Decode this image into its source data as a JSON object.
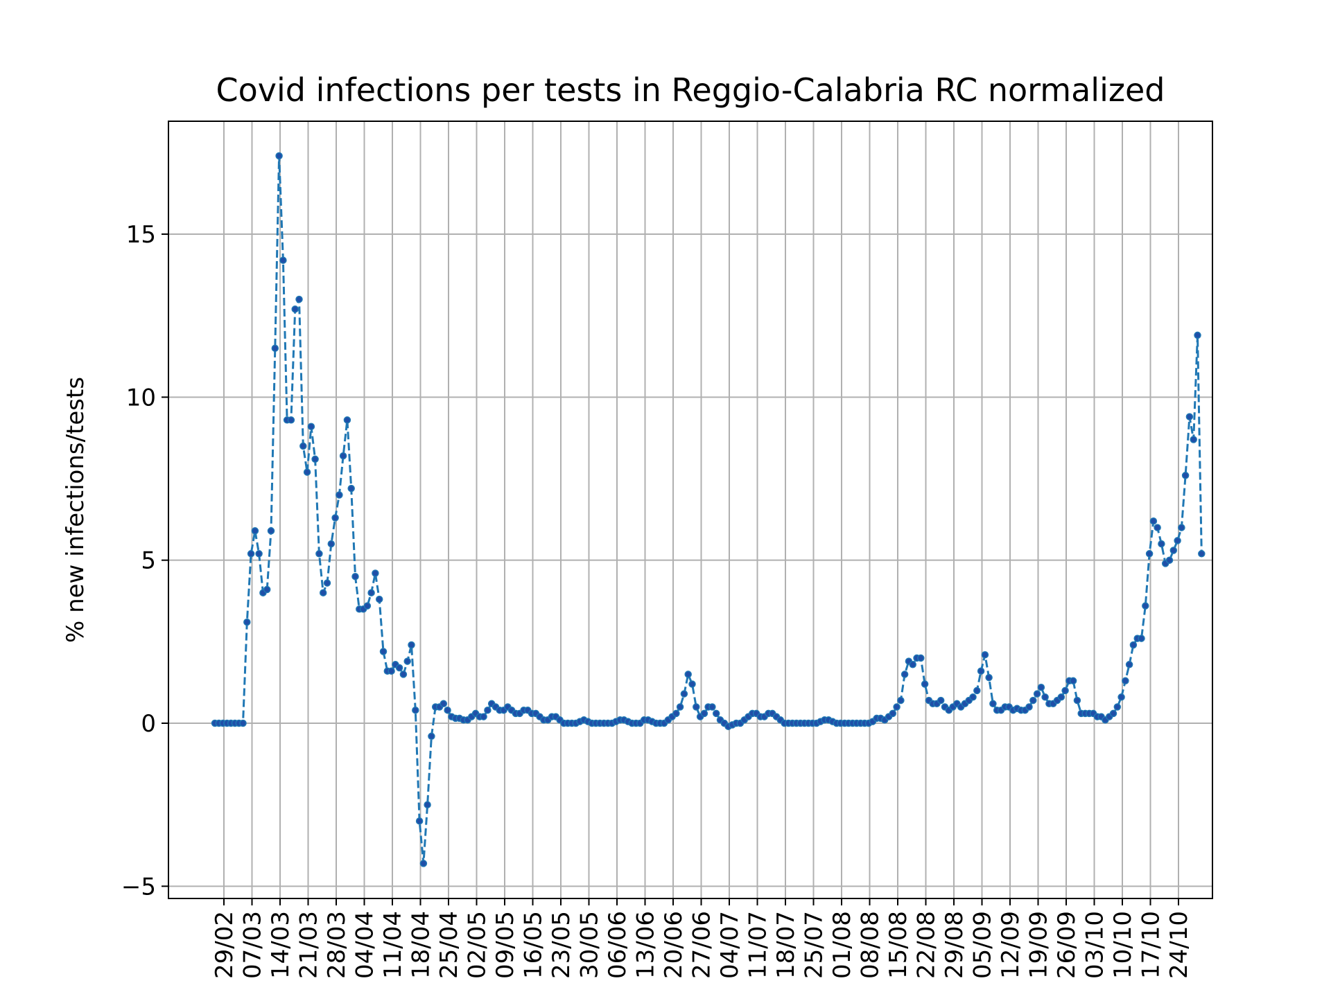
{
  "chart_data": {
    "type": "line",
    "title": "Covid infections per tests in Reggio-Calabria RC normalized",
    "xlabel": "",
    "ylabel": "% new infections/tests",
    "ylim": [
      -5.3,
      18.5
    ],
    "yticks": [
      {
        "value": -5,
        "label": "−5"
      },
      {
        "value": 0,
        "label": "0"
      },
      {
        "value": 5,
        "label": "5"
      },
      {
        "value": 10,
        "label": "10"
      },
      {
        "value": 15,
        "label": "15"
      }
    ],
    "xticks": [
      "29/02",
      "07/03",
      "14/03",
      "21/03",
      "28/03",
      "04/04",
      "11/04",
      "18/04",
      "25/04",
      "02/05",
      "09/05",
      "16/05",
      "23/05",
      "30/05",
      "06/06",
      "13/06",
      "20/06",
      "27/06",
      "04/07",
      "11/07",
      "18/07",
      "25/07",
      "01/08",
      "08/08",
      "15/08",
      "22/08",
      "29/08",
      "05/09",
      "12/09",
      "19/09",
      "26/09",
      "03/10",
      "10/10",
      "17/10",
      "24/10"
    ],
    "grid": true,
    "colors": {
      "line": "#1f77b4",
      "marker": "#1f4fa8",
      "grid": "#b0b0b0"
    },
    "series": [
      {
        "values": [
          0,
          0,
          0,
          0,
          0,
          0,
          0,
          0,
          3.1,
          5.2,
          5.9,
          5.2,
          4.0,
          4.1,
          5.9,
          11.5,
          17.4,
          14.2,
          9.3,
          9.3,
          12.7,
          13.0,
          8.5,
          7.7,
          9.1,
          8.1,
          5.2,
          4.0,
          4.3,
          5.5,
          6.3,
          7.0,
          8.2,
          9.3,
          7.2,
          4.5,
          3.5,
          3.5,
          3.6,
          4.0,
          4.6,
          3.8,
          2.2,
          1.6,
          1.6,
          1.8,
          1.7,
          1.5,
          1.9,
          2.4,
          0.4,
          -3.0,
          -4.3,
          -2.5,
          -0.4,
          0.5,
          0.5,
          0.6,
          0.4,
          0.2,
          0.15,
          0.15,
          0.1,
          0.1,
          0.2,
          0.3,
          0.2,
          0.2,
          0.4,
          0.6,
          0.5,
          0.4,
          0.4,
          0.5,
          0.4,
          0.3,
          0.3,
          0.4,
          0.4,
          0.3,
          0.3,
          0.2,
          0.1,
          0.1,
          0.2,
          0.2,
          0.1,
          0.0,
          0.0,
          0.0,
          0.0,
          0.05,
          0.1,
          0.05,
          0.0,
          0.0,
          0.0,
          0.0,
          0.0,
          0.0,
          0.05,
          0.1,
          0.1,
          0.05,
          0.0,
          0.0,
          0.0,
          0.1,
          0.1,
          0.05,
          0.0,
          0.0,
          0.0,
          0.1,
          0.2,
          0.3,
          0.5,
          0.9,
          1.5,
          1.2,
          0.5,
          0.2,
          0.3,
          0.5,
          0.5,
          0.3,
          0.1,
          0.0,
          -0.1,
          -0.05,
          0.0,
          0.0,
          0.1,
          0.2,
          0.3,
          0.3,
          0.2,
          0.2,
          0.3,
          0.3,
          0.2,
          0.1,
          0.0,
          0.0,
          0.0,
          0.0,
          0.0,
          0.0,
          0.0,
          0.0,
          0.0,
          0.05,
          0.1,
          0.1,
          0.05,
          0.0,
          0.0,
          0.0,
          0.0,
          0.0,
          0.0,
          0.0,
          0.0,
          0.0,
          0.05,
          0.15,
          0.15,
          0.1,
          0.2,
          0.3,
          0.5,
          0.7,
          1.5,
          1.9,
          1.8,
          2.0,
          2.0,
          1.2,
          0.7,
          0.6,
          0.6,
          0.7,
          0.5,
          0.4,
          0.5,
          0.6,
          0.5,
          0.6,
          0.7,
          0.8,
          1.0,
          1.6,
          2.1,
          1.4,
          0.6,
          0.4,
          0.4,
          0.5,
          0.5,
          0.4,
          0.45,
          0.4,
          0.4,
          0.5,
          0.7,
          0.9,
          1.1,
          0.8,
          0.6,
          0.6,
          0.7,
          0.8,
          1.0,
          1.3,
          1.3,
          0.7,
          0.3,
          0.3,
          0.3,
          0.3,
          0.2,
          0.2,
          0.1,
          0.2,
          0.3,
          0.5,
          0.8,
          1.3,
          1.8,
          2.4,
          2.6,
          2.6,
          3.6,
          5.2,
          6.2,
          6.0,
          5.5,
          4.9,
          5.0,
          5.3,
          5.6,
          6.0,
          7.6,
          9.4,
          8.7,
          11.9,
          5.2
        ]
      }
    ]
  }
}
